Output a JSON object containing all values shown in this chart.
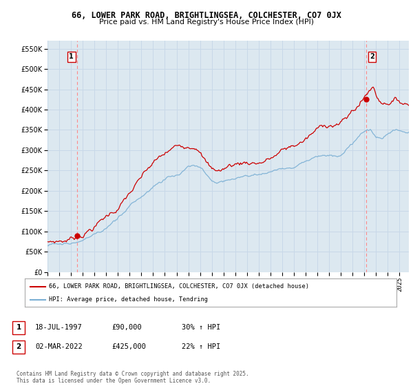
{
  "title": "66, LOWER PARK ROAD, BRIGHTLINGSEA, COLCHESTER, CO7 0JX",
  "subtitle": "Price paid vs. HM Land Registry's House Price Index (HPI)",
  "legend_line1": "66, LOWER PARK ROAD, BRIGHTLINGSEA, COLCHESTER, CO7 0JX (detached house)",
  "legend_line2": "HPI: Average price, detached house, Tendring",
  "annotation1_date": "18-JUL-1997",
  "annotation1_price": "£90,000",
  "annotation1_hpi": "30% ↑ HPI",
  "annotation2_date": "02-MAR-2022",
  "annotation2_price": "£425,000",
  "annotation2_hpi": "22% ↑ HPI",
  "footer": "Contains HM Land Registry data © Crown copyright and database right 2025.\nThis data is licensed under the Open Government Licence v3.0.",
  "ylim": [
    0,
    570000
  ],
  "yticks": [
    0,
    50000,
    100000,
    150000,
    200000,
    250000,
    300000,
    350000,
    400000,
    450000,
    500000,
    550000
  ],
  "red_line_color": "#cc0000",
  "blue_line_color": "#7aafd4",
  "vline_color": "#ff8888",
  "grid_color": "#c8d8e8",
  "chart_bg": "#dce8f0",
  "background_color": "#ffffff",
  "purchase1_x": 1997.54,
  "purchase1_y": 90000,
  "purchase2_x": 2022.17,
  "purchase2_y": 425000,
  "xmin": 1995.0,
  "xmax": 2025.8
}
